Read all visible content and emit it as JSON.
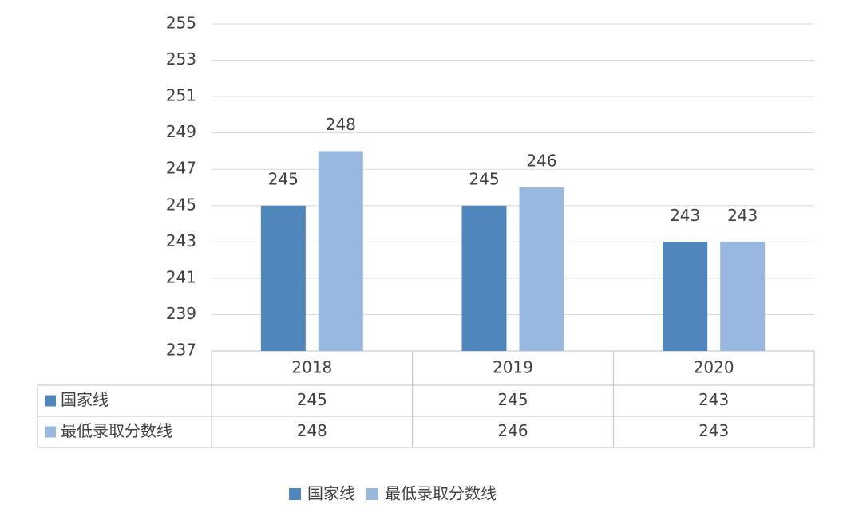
{
  "chart_data": {
    "type": "bar",
    "categories": [
      "2018",
      "2019",
      "2020"
    ],
    "series": [
      {
        "name": "国家线",
        "color": "#4f86bb",
        "values": [
          245,
          245,
          243
        ]
      },
      {
        "name": "最低录取分数线",
        "color": "#98b8e0",
        "values": [
          248,
          246,
          243
        ]
      }
    ],
    "ylim": [
      237,
      255
    ],
    "yticks": [
      237,
      239,
      241,
      243,
      245,
      247,
      249,
      251,
      253,
      255
    ],
    "grid": true,
    "legend": "bottom",
    "data_table": true
  }
}
